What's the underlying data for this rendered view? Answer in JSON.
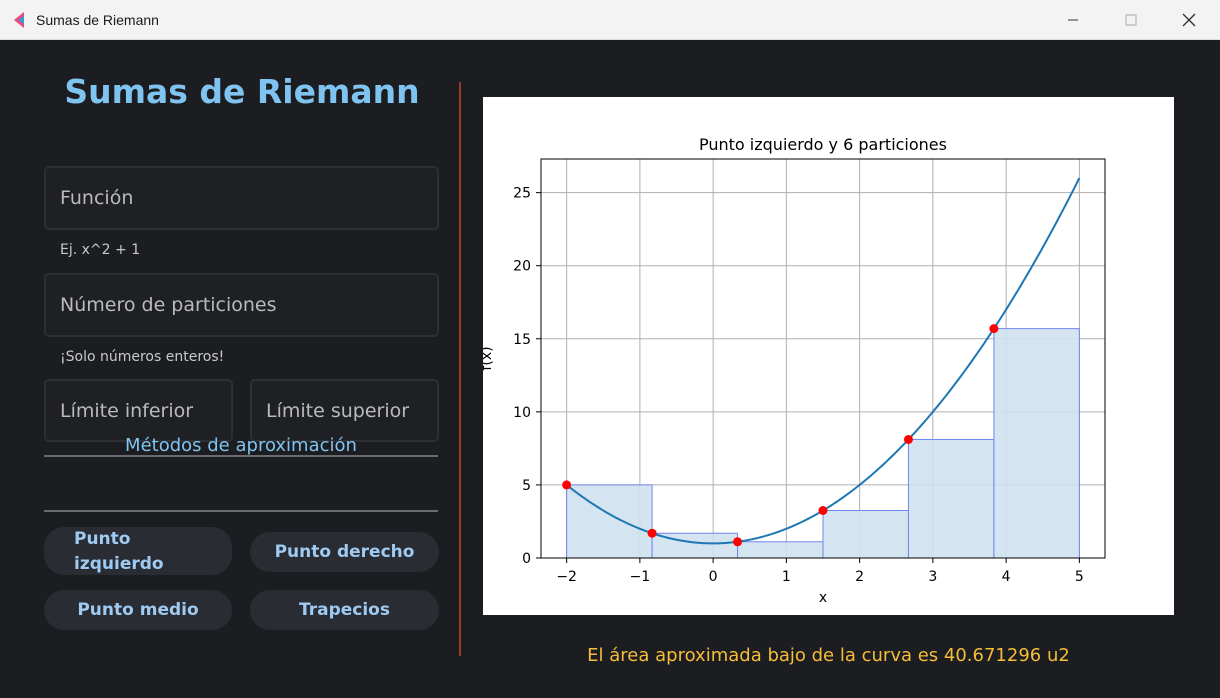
{
  "window": {
    "title": "Sumas de Riemann",
    "minimize_icon": "minimize-icon",
    "maximize_icon": "maximize-icon",
    "close_icon": "close-icon",
    "app_icon": "app-logo-icon"
  },
  "form": {
    "heading": "Sumas de Riemann",
    "function_placeholder": "Función",
    "function_hint": "Ej. x^2 + 1",
    "partitions_placeholder": "Número de particiones",
    "partitions_hint": "¡Solo números enteros!",
    "lower_limit_placeholder": "Límite inferior",
    "upper_limit_placeholder": "Límite superior",
    "methods_title": "Métodos de aproximación",
    "methods": {
      "left_line1": "Punto",
      "left_line2": "izquierdo",
      "right": "Punto derecho",
      "mid": "Punto medio",
      "trap": "Trapecios"
    }
  },
  "result_text": "El área aproximada bajo de la curva es 40.671296 u2",
  "colors": {
    "accent": "#7fc4f0",
    "result": "#f6bd3a",
    "curve": "#1f77b4",
    "rect_fill": "#d0e1f0",
    "rect_edge": "#6f86f0",
    "points": "#ff0000"
  },
  "chart_data": {
    "type": "line",
    "title": "Punto izquierdo y 6 particiones",
    "xlabel": "x",
    "ylabel": "f(x)",
    "xlim": [
      -2.35,
      5.35
    ],
    "ylim": [
      0,
      27.3
    ],
    "grid": true,
    "x_ticks": [
      -2,
      -1,
      0,
      1,
      2,
      3,
      4,
      5
    ],
    "x_tick_labels": [
      "−2",
      "−1",
      "0",
      "1",
      "2",
      "3",
      "4",
      "5"
    ],
    "y_ticks": [
      0,
      5,
      10,
      15,
      20,
      25
    ],
    "y_tick_labels": [
      "0",
      "5",
      "10",
      "15",
      "20",
      "25"
    ],
    "curve": {
      "domain": [
        -2,
        5
      ],
      "expression": "x^2 + 1"
    },
    "rectangles": [
      {
        "x0": -2,
        "x1": -0.8333,
        "height": 5.0
      },
      {
        "x0": -0.8333,
        "x1": 0.3333,
        "height": 1.6944
      },
      {
        "x0": 0.3333,
        "x1": 1.5,
        "height": 1.1111
      },
      {
        "x0": 1.5,
        "x1": 2.6667,
        "height": 3.25
      },
      {
        "x0": 2.6667,
        "x1": 3.8333,
        "height": 8.1111
      },
      {
        "x0": 3.8333,
        "x1": 5.0,
        "height": 15.6944
      }
    ],
    "points": [
      {
        "x": -2,
        "y": 5.0
      },
      {
        "x": -0.8333,
        "y": 1.6944
      },
      {
        "x": 0.3333,
        "y": 1.1111
      },
      {
        "x": 1.5,
        "y": 3.25
      },
      {
        "x": 2.6667,
        "y": 8.1111
      },
      {
        "x": 3.8333,
        "y": 15.6944
      }
    ]
  }
}
